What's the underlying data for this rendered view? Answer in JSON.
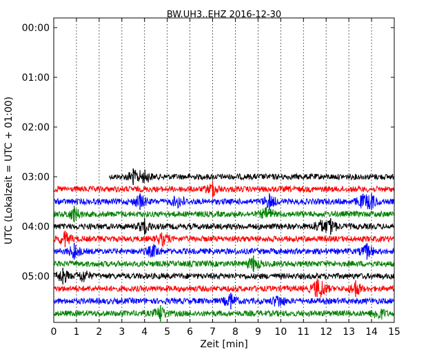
{
  "chart_data": {
    "type": "line",
    "title": "BW.UH3..EHZ 2016-12-30",
    "xlabel": "Zeit  [min]",
    "ylabel": "UTC (Lokalzeit = UTC + 01:00)",
    "xlim": [
      0,
      15
    ],
    "x_ticks": [
      "0",
      "1",
      "2",
      "3",
      "4",
      "5",
      "6",
      "7",
      "8",
      "9",
      "10",
      "11",
      "12",
      "13",
      "14",
      "15"
    ],
    "y_ticks": [
      {
        "label": "00:00",
        "hour": 0
      },
      {
        "label": "01:00",
        "hour": 1
      },
      {
        "label": "02:00",
        "hour": 2
      },
      {
        "label": "03:00",
        "hour": 3
      },
      {
        "label": "04:00",
        "hour": 4
      },
      {
        "label": "05:00",
        "hour": 5
      }
    ],
    "ylim_hours": [
      0,
      5.85
    ],
    "grid": {
      "x": "dotted",
      "y": "none"
    },
    "colors": [
      "#000000",
      "#ff0000",
      "#0000ff",
      "#008000"
    ],
    "traces": [
      {
        "start_hour": 3.0,
        "x_start": 2.45,
        "x_end": 15,
        "color": "#000000",
        "events": [
          3.5,
          4.0
        ]
      },
      {
        "start_hour": 3.25,
        "x_start": 0,
        "x_end": 15,
        "color": "#ff0000",
        "events": [
          7.0
        ]
      },
      {
        "start_hour": 3.5,
        "x_start": 0,
        "x_end": 15,
        "color": "#0000ff",
        "events": [
          3.8,
          5.5,
          9.5,
          13.6,
          14.0
        ]
      },
      {
        "start_hour": 3.75,
        "x_start": 0,
        "x_end": 15,
        "color": "#008000",
        "events": [
          0.9,
          9.4
        ]
      },
      {
        "start_hour": 4.0,
        "x_start": 0,
        "x_end": 15,
        "color": "#000000",
        "events": [
          4.0,
          11.7,
          12.2
        ]
      },
      {
        "start_hour": 4.25,
        "x_start": 0,
        "x_end": 15,
        "color": "#ff0000",
        "events": [
          0.5,
          4.8
        ]
      },
      {
        "start_hour": 4.5,
        "x_start": 0,
        "x_end": 15,
        "color": "#0000ff",
        "events": [
          0.9,
          4.4,
          13.8
        ]
      },
      {
        "start_hour": 4.75,
        "x_start": 0,
        "x_end": 15,
        "color": "#008000",
        "events": [
          8.8
        ]
      },
      {
        "start_hour": 5.0,
        "x_start": 0,
        "x_end": 15,
        "color": "#000000",
        "events": [
          0.4,
          1.3
        ]
      },
      {
        "start_hour": 5.25,
        "x_start": 0,
        "x_end": 15,
        "color": "#ff0000",
        "events": [
          11.6,
          11.8,
          13.3
        ]
      },
      {
        "start_hour": 5.5,
        "x_start": 0,
        "x_end": 15,
        "color": "#0000ff",
        "events": [
          7.8,
          9.9
        ]
      },
      {
        "start_hour": 5.75,
        "x_start": 0,
        "x_end": 15,
        "color": "#008000",
        "events": [
          4.7,
          14.3
        ]
      }
    ]
  }
}
